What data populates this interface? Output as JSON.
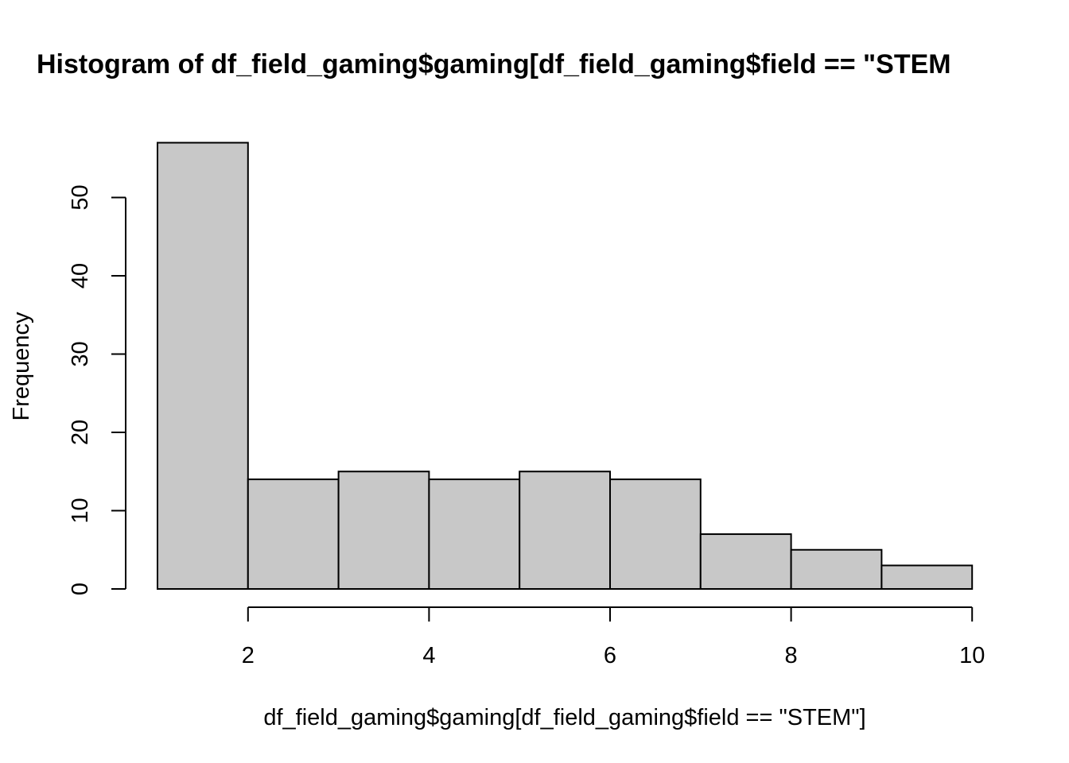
{
  "chart_data": {
    "type": "bar",
    "title": "Histogram of df_field_gaming$gaming[df_field_gaming$field == \"STEM",
    "xlabel": "df_field_gaming$gaming[df_field_gaming$field == \"STEM\"]",
    "ylabel": "Frequency",
    "bins": [
      {
        "x0": 1,
        "x1": 2,
        "count": 57
      },
      {
        "x0": 2,
        "x1": 3,
        "count": 14
      },
      {
        "x0": 3,
        "x1": 4,
        "count": 15
      },
      {
        "x0": 4,
        "x1": 5,
        "count": 14
      },
      {
        "x0": 5,
        "x1": 6,
        "count": 15
      },
      {
        "x0": 6,
        "x1": 7,
        "count": 14
      },
      {
        "x0": 7,
        "x1": 8,
        "count": 7
      },
      {
        "x0": 8,
        "x1": 9,
        "count": 5
      },
      {
        "x0": 9,
        "x1": 10,
        "count": 3
      }
    ],
    "xlim": [
      1,
      10
    ],
    "ylim": [
      0,
      57
    ],
    "x_ticks": [
      2,
      4,
      6,
      8,
      10
    ],
    "y_ticks": [
      0,
      10,
      20,
      30,
      40,
      50
    ],
    "grid": false,
    "colors": {
      "bar_fill": "#c8c8c8",
      "bar_stroke": "#000000"
    }
  }
}
